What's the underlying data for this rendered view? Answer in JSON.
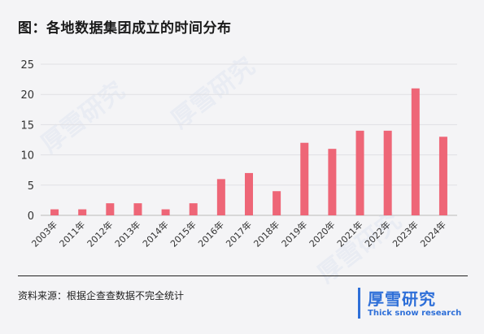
{
  "title": "图：各地数据集团成立的时间分布",
  "source": "资料来源：根据企查查数据不完全统计",
  "brand": {
    "name": "厚雪研究",
    "sub": "Thick snow research",
    "color": "#2e6fd8"
  },
  "watermark": "厚雪研究",
  "chart_data": {
    "type": "bar",
    "categories": [
      "2003年",
      "2011年",
      "2012年",
      "2013年",
      "2014年",
      "2015年",
      "2016年",
      "2017年",
      "2018年",
      "2019年",
      "2020年",
      "2021年",
      "2022年",
      "2023年",
      "2024年"
    ],
    "values": [
      1,
      1,
      2,
      2,
      1,
      2,
      6,
      7,
      4,
      12,
      11,
      14,
      14,
      21,
      13
    ],
    "ylim": [
      0,
      25
    ],
    "yticks": [
      0,
      5,
      10,
      15,
      20,
      25
    ],
    "grid": true,
    "bar_color": "#ee6677"
  }
}
